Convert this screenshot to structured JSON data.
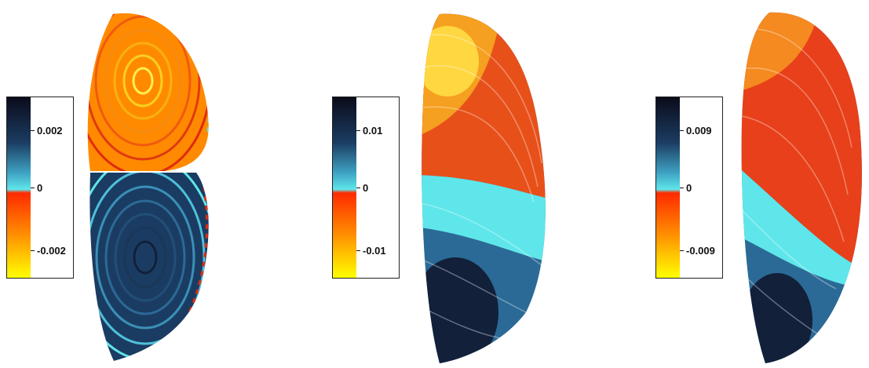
{
  "panels": [
    {
      "colorbar": {
        "ticks": [
          "0.002",
          "0",
          "-0.002"
        ],
        "stops": [
          "#0b0b1a",
          "#1b3c62",
          "#3fa3c4",
          "#5fe6ea",
          "#ff2a00",
          "#ff8a00",
          "#ffff00"
        ]
      }
    },
    {
      "colorbar": {
        "ticks": [
          "0.01",
          "0",
          "-0.01"
        ],
        "stops": [
          "#0b0b1a",
          "#1b3c62",
          "#3fa3c4",
          "#5fe6ea",
          "#ff2a00",
          "#ff8a00",
          "#ffff00"
        ]
      }
    },
    {
      "colorbar": {
        "ticks": [
          "0.009",
          "0",
          "-0.009"
        ],
        "stops": [
          "#0b0b1a",
          "#1b3c62",
          "#3fa3c4",
          "#5fe6ea",
          "#ff2a00",
          "#ff8a00",
          "#ffff00"
        ]
      }
    }
  ]
}
